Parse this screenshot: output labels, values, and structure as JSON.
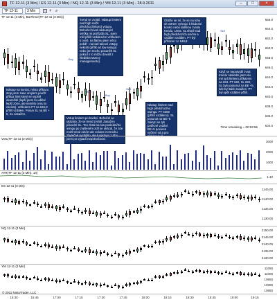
{
  "window": {
    "title": "TF 12-11 (3 Min) / ES 12-11 (3 Min) / NQ 12-11 (3 Min) / YM 12-11 (3 Min) - 28.9.2011"
  },
  "toolbar": {
    "instrument": "TF 12-11",
    "interval": "3 Min"
  },
  "panels": {
    "main": "TF 12-11 (3 Min), BarTimer(TF 12-11 (3 Min))",
    "vol": "VOL(TF 12-11 (3 Min))",
    "atr": "ATR(TF 12-11 (3 Min), 14)",
    "es": "ES 12-11 (3 Min)",
    "nq": "NQ 12-11 (3 Min)",
    "ym": "YM 12-11 (3 Min)"
  },
  "timer": "Time remaining = 00:02:56",
  "copyright": "© 2011 NinjaTrader, LLC",
  "notes": [
    "Trend se zvrátil. Nástup limitem nad high svíčk předchozí(skoro) vstupu. Bohužel hned následující svíčka mi prořízdla SL, jsem měl příliš vzdáleném vzhledem k cenš. na flatmu jsem něco pokdf - na barl takové vstupy nekrátí (příliš od low svingu) nebo jen trochu posunětl SL pokud s to můžu dovolit z hlediska Money managementu).",
    "Nástup na konkci, místo příkazu stop jsem zase omylem použil příkaz limit který se vyplnil okamžitě (lepší jsem to udělal lepší zónu, ale nemělo cenu to zavírat). vzhledem PT na 646,9 přílíš vzdálen. Posun SL na BE + 5, SL zasažen.",
    "Vstup limitem po konkci. Bohužel se ukázalo, že se trend zvrátil. Zasažen původní SL. Ten zbral na low poslední/ho svingu po zvýšeném zdíl se ukázal, že zde mohl trend nelézt ale volume mi trochu zbytečně vychýlilo, ale k výstupu z trhu jsem po vypadí nepokračoval.",
    "Obtíže se mi, že se na tohu sít vstrem vyhnuje k hluboké konkci nebo dalšímu zvratu trendu. Umst. SL těsně nad high předchozích svíček a vzdálen vzdálen. PT byl přiřazen na 648,8.",
    "Nástup limitem nad high předchozího swingu. PT 6368 (přílíš vzdáleno). SL posunut na BE+5 zakrytí se tyh potřicné vydání BE+5 posunut vyčlení ná a pro zisk(ony) :))",
    "Když se nepotvrdil zvrat trendu následní jsem do mé splt limitem příkazem na 653. PT 660, SL 650, SL bylo posunut na BE +5, kde byl také zasažen. PT byl opět vzdálen příliš."
  ],
  "markers": [
    "Buy",
    "Sell",
    "Buy",
    "Sell",
    "Sell",
    "Buy"
  ],
  "price_axis": [
    "656.0",
    "654.0",
    "652.0",
    "650.0",
    "648.0",
    "646.0",
    "644.0",
    "642.0",
    "640.0",
    "638.0",
    "636.0",
    "634.0"
  ],
  "vol_axis": [
    "3000",
    "2000",
    "1000"
  ],
  "atr_axis": [
    "1.40"
  ],
  "es_axis": [
    "1145.00",
    "1140.00",
    "1135.00",
    "1130.00"
  ],
  "nq_axis": [
    "2150.00",
    "2145.00",
    "2140.00",
    "2135.00",
    "2130.00"
  ],
  "ym_axis": [
    "11050",
    "11000",
    "10950",
    "10900",
    "10850"
  ],
  "time_axis": [
    "16:30",
    "16:45",
    "17:00",
    "17:15",
    "17:30",
    "17:45",
    "18:00",
    "18:15",
    "18:30",
    "18:45",
    "19:00",
    "19:15"
  ]
}
